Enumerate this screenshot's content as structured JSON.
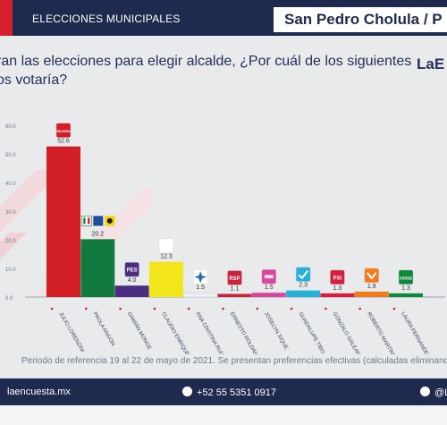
{
  "header": {
    "section": "ELECCIONES MUNICIPALES",
    "place": "San Pedro Cholula / P"
  },
  "question": "ran las elecciones para elegir alcalde, ¿Por cuál de los siguientes os votaría?",
  "brand": "LaE",
  "footnote": "Periodo de referencia 19 al 22 de mayo de 2021. Se presentan preferencias efectivas (calculadas eliminando l",
  "footer": {
    "website": "laencuesta.mx",
    "phone": "+52 55 5351 0917",
    "social": "@L"
  },
  "chart_data": {
    "type": "bar",
    "yticks": [
      "60.0",
      "50.0",
      "40.0",
      "30.0",
      "20.0",
      "10.0",
      "0.0"
    ],
    "ylim": [
      0,
      60
    ],
    "categories": [
      {
        "name": "JULIO LORENZINI",
        "value": 52.6,
        "label": "52.6",
        "color": "#d21f26",
        "party": "morena",
        "logo_text": "morena"
      },
      {
        "name": "PAOLA ANGÓN",
        "value": 20.2,
        "label": "20.2",
        "color": "#127a3e",
        "party": "PRI-PAN-PRD",
        "logo_text": ""
      },
      {
        "name": "DAMIÁN MONGE",
        "value": 4.0,
        "label": "4.0",
        "color": "#4b2d82",
        "party": "PES",
        "logo_text": "PES"
      },
      {
        "name": "CLAUDIO ENRIQUE ROSAS CRUZ",
        "value": 12.3,
        "label": "12.3",
        "color": "#f2e51a",
        "party": "Nueva Alianza",
        "logo_text": ""
      },
      {
        "name": "ANA CRISTINA RUIZ RANGEL",
        "value": 1.5,
        "label": "1.5",
        "color": "#eceff3",
        "party": "Compromiso por Puebla",
        "logo_text": ""
      },
      {
        "name": "ERNESTO ROLDÁN SALADO",
        "value": 1.1,
        "label": "1.1",
        "color": "#c8233b",
        "party": "RSP",
        "logo_text": "RSP"
      },
      {
        "name": "JOSELYN XIQUE",
        "value": 1.5,
        "label": "1.5",
        "color": "#d9479a",
        "party": "Fuerza por México",
        "logo_text": ""
      },
      {
        "name": "GUADALUPE TIBO ANTONIO",
        "value": 2.3,
        "label": "2.3",
        "color": "#27b1d6",
        "party": "PACTO",
        "logo_text": ""
      },
      {
        "name": "GONZALO GALEANA FRANCO",
        "value": 1.3,
        "label": "1.3",
        "color": "#d81e3f",
        "party": "PSI",
        "logo_text": "PSI"
      },
      {
        "name": "ROBERTO MARTÍNEZ",
        "value": 1.9,
        "label": "1.9",
        "color": "#f07a1c",
        "party": "Movimiento Ciudadano",
        "logo_text": ""
      },
      {
        "name": "LAURA FERNANDEZ",
        "value": 1.3,
        "label": "1.3",
        "color": "#0f8a3c",
        "party": "VERDE",
        "logo_text": "VERDE"
      }
    ],
    "title": "",
    "xlabel": "",
    "ylabel": "",
    "grid": false,
    "legend": "none"
  }
}
